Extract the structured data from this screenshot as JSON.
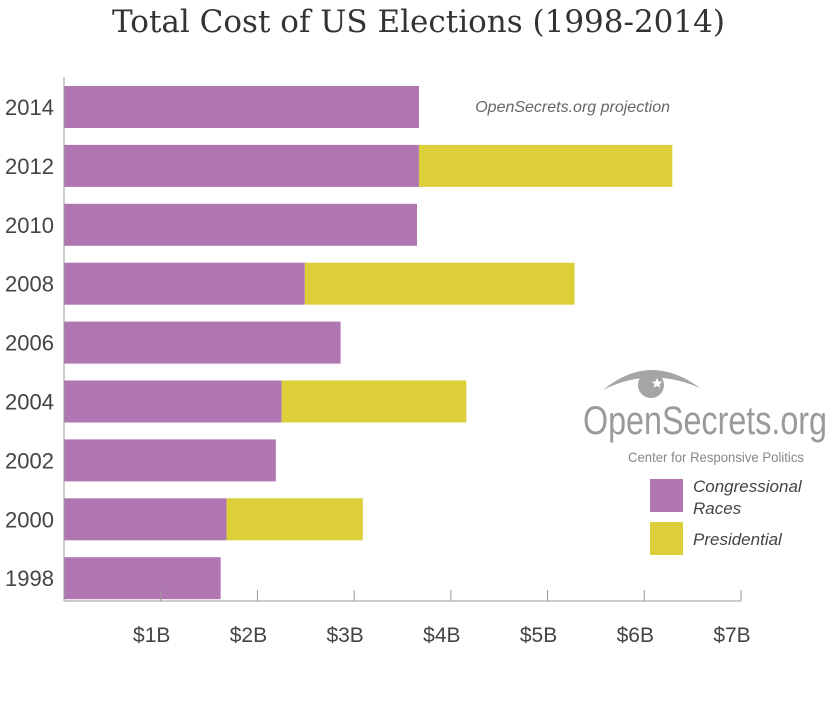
{
  "chart_data": {
    "type": "bar",
    "orientation": "horizontal",
    "stacked": true,
    "title": "Total Cost of US Elections (1998-2014)",
    "categories": [
      "2014",
      "2012",
      "2010",
      "2008",
      "2006",
      "2004",
      "2002",
      "2000",
      "1998"
    ],
    "series": [
      {
        "name": "Congressional Races",
        "color": "#b076b1",
        "values": [
          3.67,
          3.67,
          3.65,
          2.49,
          2.86,
          2.25,
          2.19,
          1.68,
          1.62
        ]
      },
      {
        "name": "Presidential",
        "color": "#ddcf3a",
        "values": [
          0,
          2.62,
          0,
          2.79,
          0,
          1.91,
          0,
          1.41,
          0
        ]
      }
    ],
    "xlim": [
      0,
      7
    ],
    "xticks": [
      1,
      2,
      3,
      4,
      5,
      6,
      7
    ],
    "xtick_labels": [
      "$1B",
      "$2B",
      "$3B",
      "$4B",
      "$5B",
      "$6B",
      "$7B"
    ],
    "xlabel": "",
    "ylabel": "",
    "units": "billions USD",
    "grid": false,
    "legend_position": "right",
    "annotation": "OpenSecrets.org projection"
  },
  "logo": {
    "name": "OpenSecrets.org",
    "subtitle": "Center for Responsive Politics",
    "icon": "eye-star-icon"
  }
}
